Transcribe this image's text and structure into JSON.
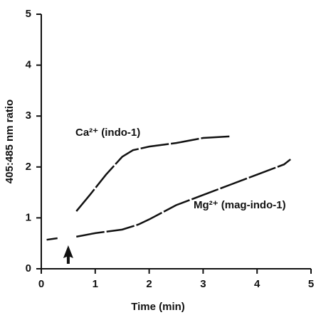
{
  "chart_data": {
    "type": "line",
    "xlabel": "Time (min)",
    "ylabel": "405:485 nm ratio",
    "xlim": [
      0,
      5
    ],
    "xticks": [
      0,
      1,
      2,
      3,
      4,
      5
    ],
    "ylim": [
      0,
      5
    ],
    "yticks": [
      0,
      1,
      2,
      3,
      4,
      5
    ],
    "arrow_x": 0.5,
    "series": [
      {
        "name": "Ca²⁺ (indo-1)",
        "color": "#111111",
        "x": [
          0.65,
          0.9,
          1.2,
          1.5,
          1.7,
          2.0,
          2.5,
          3.0,
          3.5
        ],
        "values": [
          1.13,
          1.45,
          1.85,
          2.2,
          2.33,
          2.4,
          2.47,
          2.57,
          2.6
        ]
      },
      {
        "name": "Mg²⁺ (mag-indo-1)",
        "color": "#111111",
        "x": [
          0.1,
          0.3,
          0.5,
          0.65,
          1.0,
          1.5,
          1.8,
          2.0,
          2.5,
          3.0,
          3.5,
          4.0,
          4.5,
          4.62
        ],
        "values": [
          0.57,
          0.6,
          null,
          0.63,
          0.7,
          0.77,
          0.87,
          0.97,
          1.25,
          1.45,
          1.65,
          1.85,
          2.05,
          2.15
        ]
      }
    ]
  }
}
